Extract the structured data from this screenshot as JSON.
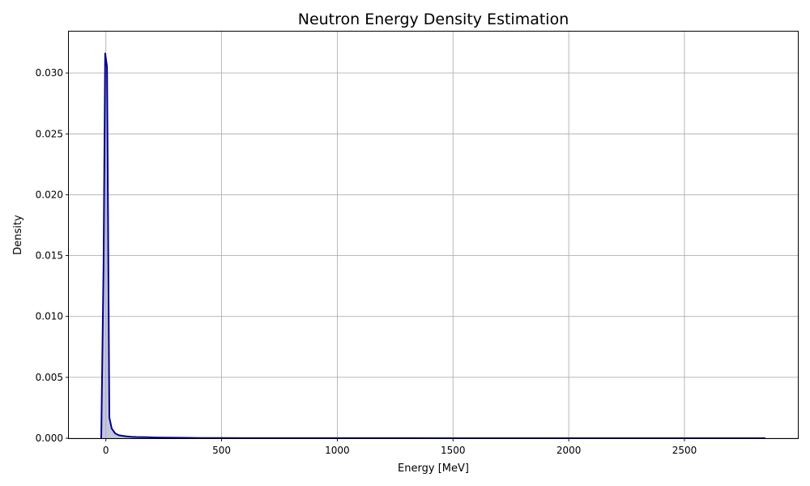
{
  "chart_data": {
    "type": "area",
    "title": "Neutron Energy Density Estimation",
    "xlabel": "Energy [MeV]",
    "ylabel": "Density",
    "xlim": [
      -160,
      2990
    ],
    "ylim": [
      0,
      0.0334
    ],
    "xticks": [
      {
        "value": 0,
        "label": "0"
      },
      {
        "value": 500,
        "label": "500"
      },
      {
        "value": 1000,
        "label": "1000"
      },
      {
        "value": 1500,
        "label": "1500"
      },
      {
        "value": 2000,
        "label": "2000"
      },
      {
        "value": 2500,
        "label": "2500"
      }
    ],
    "yticks": [
      {
        "value": 0,
        "label": "0.000"
      },
      {
        "value": 0.005,
        "label": "0.005"
      },
      {
        "value": 0.01,
        "label": "0.010"
      },
      {
        "value": 0.015,
        "label": "0.015"
      },
      {
        "value": 0.02,
        "label": "0.020"
      },
      {
        "value": 0.025,
        "label": "0.025"
      },
      {
        "value": 0.03,
        "label": "0.030"
      }
    ],
    "grid": true,
    "colors": {
      "line": "#00008b",
      "fill": "#9fa3c4"
    },
    "series": [
      {
        "x": [
          -20,
          -10,
          -3,
          5,
          15,
          25,
          40,
          55,
          70,
          90,
          110,
          130,
          150,
          180,
          210,
          250,
          300,
          350,
          400,
          500,
          600,
          800,
          1000,
          1500,
          2000,
          2500,
          2850
        ],
        "y": [
          0,
          0.0142,
          0.0316,
          0.0305,
          0.0017,
          0.0008,
          0.0004,
          0.00025,
          0.0002,
          0.00015,
          0.00012,
          0.0001,
          9e-05,
          8e-05,
          6e-05,
          5e-05,
          4e-05,
          3e-05,
          2e-05,
          1.5e-05,
          1e-05,
          8e-06,
          6e-06,
          4e-06,
          3e-06,
          2e-06,
          0
        ]
      }
    ]
  }
}
